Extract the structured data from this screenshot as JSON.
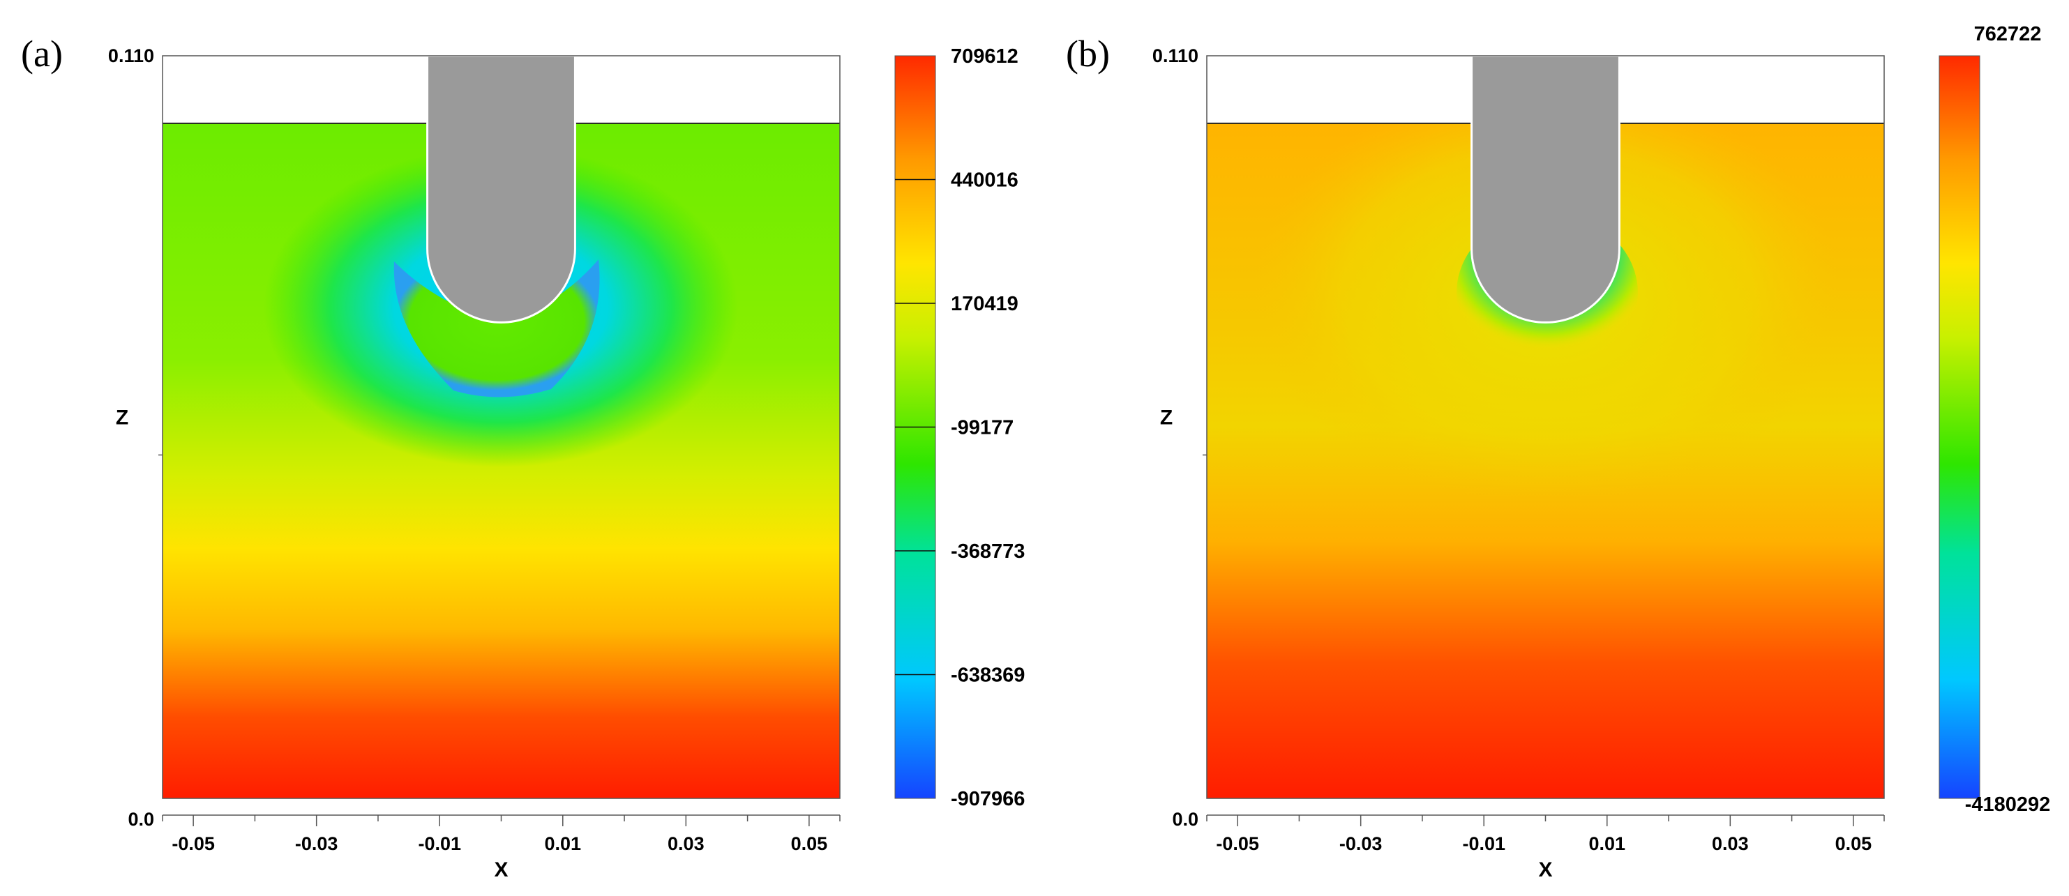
{
  "chart_data": [
    {
      "type": "heatmap",
      "panel_label": "(a)",
      "title": "",
      "xlabel": "X",
      "ylabel": "Z",
      "xlim": [
        -0.055,
        0.055
      ],
      "ylim": [
        0.0,
        0.11
      ],
      "x_ticks": [
        "-0.05",
        "-0.03",
        "-0.01",
        "0.01",
        "0.03",
        "0.05"
      ],
      "x_tick_values": [
        -0.05,
        -0.03,
        -0.01,
        0.01,
        0.03,
        0.05
      ],
      "y_ticks": [
        "0.0",
        "0.110"
      ],
      "y_tick_values": [
        0.0,
        0.11
      ],
      "surface_level": 0.1,
      "indenter": {
        "x_min": -0.012,
        "x_max": 0.012,
        "tip_z": 0.0705
      },
      "colorbar": {
        "min": -907966,
        "max": 709612,
        "labels": [
          "709612",
          "440016",
          "170419",
          "-99177",
          "-368773",
          "-638369",
          "-907966"
        ],
        "values": [
          709612,
          440016,
          170419,
          -99177,
          -368773,
          -638369,
          -907966
        ]
      }
    },
    {
      "type": "heatmap",
      "panel_label": "(b)",
      "title": "",
      "xlabel": "X",
      "ylabel": "Z",
      "xlim": [
        -0.055,
        0.055
      ],
      "ylim": [
        0.0,
        0.11
      ],
      "x_ticks": [
        "-0.05",
        "-0.03",
        "-0.01",
        "0.01",
        "0.03",
        "0.05"
      ],
      "x_tick_values": [
        -0.05,
        -0.03,
        -0.01,
        0.01,
        0.03,
        0.05
      ],
      "y_ticks": [
        "0.0",
        "0.110"
      ],
      "y_tick_values": [
        0.0,
        0.11
      ],
      "surface_level": 0.1,
      "indenter": {
        "x_min": -0.012,
        "x_max": 0.012,
        "tip_z": 0.0705
      },
      "colorbar": {
        "min": -4180292,
        "max": 762722,
        "labels": [
          "762722",
          "-4180292"
        ],
        "values": [
          762722,
          -4180292
        ]
      }
    }
  ]
}
